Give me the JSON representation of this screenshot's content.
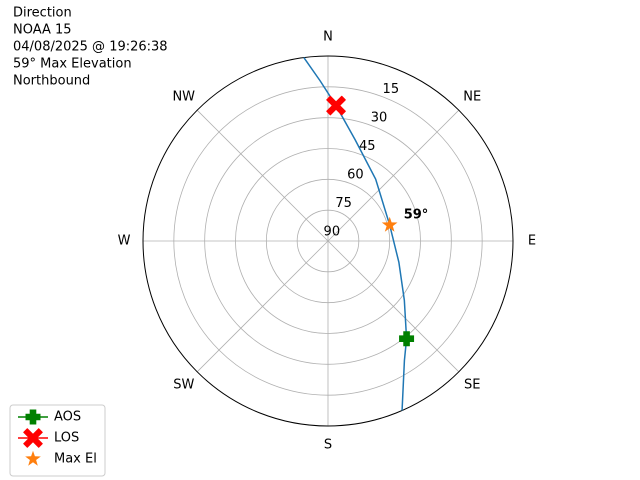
{
  "chart_data": {
    "type": "polar",
    "title_lines": [
      "Direction",
      "NOAA 15",
      "04/08/2025 @ 19:26:38",
      "59° Max Elevation",
      "Northbound"
    ],
    "directions": [
      {
        "label": "N",
        "azimuth": 0
      },
      {
        "label": "NE",
        "azimuth": 45
      },
      {
        "label": "E",
        "azimuth": 90
      },
      {
        "label": "SE",
        "azimuth": 135
      },
      {
        "label": "S",
        "azimuth": 180
      },
      {
        "label": "SW",
        "azimuth": 225
      },
      {
        "label": "W",
        "azimuth": 270
      },
      {
        "label": "NW",
        "azimuth": 315
      }
    ],
    "rlim": [
      90,
      0
    ],
    "rticks": [
      15,
      30,
      45,
      60,
      75,
      90
    ],
    "grid": true,
    "legend": "lower left",
    "series": [
      {
        "color": "#1f77b4",
        "marker": "line",
        "azimuth": [
          156.4,
          147.4,
          141.2,
          127.8,
          106.7,
          75.5,
          37.6,
          15.0,
          3.4,
          357.2,
          352.5
        ],
        "elevation": [
          0,
          21,
          29,
          43,
          54,
          59,
          52,
          39,
          24,
          12,
          0
        ]
      },
      {
        "name": "AOS",
        "color": "green",
        "marker": "plus",
        "azimuth": [
          141.2
        ],
        "elevation": [
          29
        ]
      },
      {
        "name": "LOS",
        "color": "red",
        "marker": "x",
        "azimuth": [
          3.4
        ],
        "elevation": [
          24
        ]
      },
      {
        "name": "Max El",
        "color": "#ff7f0e",
        "marker": "star",
        "azimuth": [
          75.5
        ],
        "elevation": [
          59
        ],
        "value_labels": [
          "59°"
        ]
      }
    ]
  }
}
